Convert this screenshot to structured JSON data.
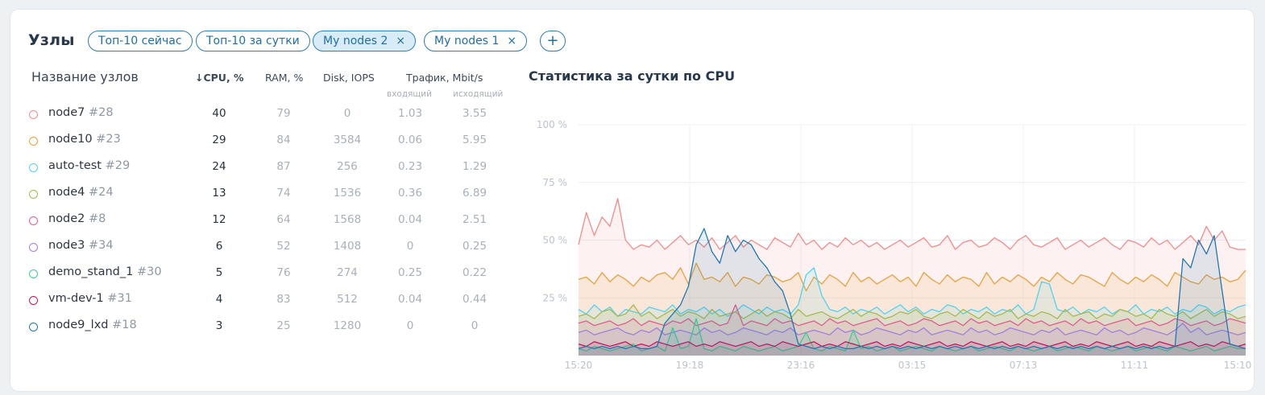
{
  "header": {
    "title": "Узлы",
    "tabs": [
      {
        "label": "Топ-10 сейчас",
        "active": false,
        "closable": false
      },
      {
        "label": "Топ-10 за сутки",
        "active": false,
        "closable": false
      },
      {
        "label": "My nodes 2",
        "active": true,
        "closable": true
      },
      {
        "label": "My nodes 1",
        "active": false,
        "closable": true
      }
    ],
    "add_label": "+",
    "close_glyph": "×"
  },
  "table": {
    "columns": {
      "name": "Название узлов",
      "cpu": "↓CPU, %",
      "ram": "RAM, %",
      "disk": "Disk, IOPS",
      "traffic": "Трафик, Mbit/s",
      "traffic_in": "входящий",
      "traffic_out": "исходящий"
    },
    "rows": [
      {
        "name": "node7",
        "id": "#28",
        "color": "#f28b8b",
        "cpu": "40",
        "ram": "79",
        "disk": "0",
        "tin": "1.03",
        "tout": "3.55"
      },
      {
        "name": "node10",
        "id": "#23",
        "color": "#e6a23c",
        "cpu": "29",
        "ram": "84",
        "disk": "3584",
        "tin": "0.06",
        "tout": "5.95"
      },
      {
        "name": "auto-test",
        "id": "#29",
        "color": "#4fd3f0",
        "cpu": "24",
        "ram": "87",
        "disk": "256",
        "tin": "0.23",
        "tout": "1.29"
      },
      {
        "name": "node4",
        "id": "#24",
        "color": "#a8b850",
        "cpu": "13",
        "ram": "74",
        "disk": "1536",
        "tin": "0.36",
        "tout": "6.89"
      },
      {
        "name": "node2",
        "id": "#8",
        "color": "#e35b8f",
        "cpu": "12",
        "ram": "64",
        "disk": "1568",
        "tin": "0.04",
        "tout": "2.51"
      },
      {
        "name": "node3",
        "id": "#34",
        "color": "#a57de0",
        "cpu": "6",
        "ram": "52",
        "disk": "1408",
        "tin": "0",
        "tout": "0.25"
      },
      {
        "name": "demo_stand_1",
        "id": "#30",
        "color": "#3ccf8e",
        "cpu": "5",
        "ram": "76",
        "disk": "274",
        "tin": "0.25",
        "tout": "0.22"
      },
      {
        "name": "vm-dev-1",
        "id": "#31",
        "color": "#c2185b",
        "cpu": "4",
        "ram": "83",
        "disk": "512",
        "tin": "0.04",
        "tout": "0.44"
      },
      {
        "name": "node9_lxd",
        "id": "#18",
        "color": "#1f78b4",
        "cpu": "3",
        "ram": "25",
        "disk": "1280",
        "tin": "0",
        "tout": "0"
      }
    ]
  },
  "chart": {
    "title": "Статистика за сутки по CPU",
    "y_ticks": [
      "100 %",
      "75 %",
      "50 %",
      "25 %"
    ],
    "x_ticks": [
      "15:20",
      "19:18",
      "23:16",
      "03:15",
      "07:13",
      "11:11",
      "15:10"
    ]
  },
  "chart_data": {
    "type": "area",
    "title": "Статистика за сутки по CPU",
    "x_labels": [
      "15:20",
      "19:18",
      "23:16",
      "03:15",
      "07:13",
      "11:11",
      "15:10"
    ],
    "ylim": [
      0,
      100
    ],
    "y_ticks": [
      25,
      50,
      75,
      100
    ],
    "grid": true,
    "series": [
      {
        "name": "node7",
        "color": "#f28b8b",
        "values": [
          48,
          62,
          52,
          60,
          56,
          68,
          50,
          46,
          48,
          47,
          50,
          46,
          49,
          52,
          48,
          50,
          47,
          51,
          46,
          49,
          52,
          47,
          50,
          48,
          46,
          51,
          49,
          47,
          53,
          48,
          50,
          46,
          49,
          47,
          51,
          48,
          50,
          47,
          49,
          46,
          48,
          50,
          47,
          49,
          51,
          47,
          48,
          52,
          46,
          49,
          50,
          47,
          48,
          51,
          49,
          46,
          50,
          52,
          48,
          47,
          49,
          51,
          46,
          48,
          50,
          47,
          49,
          51,
          48,
          46,
          50,
          49,
          47,
          51,
          48,
          50,
          46,
          49,
          52,
          48,
          56,
          50,
          54,
          47,
          46,
          46
        ]
      },
      {
        "name": "node10",
        "color": "#e6a23c",
        "values": [
          33,
          34,
          31,
          36,
          32,
          35,
          33,
          30,
          34,
          32,
          35,
          36,
          33,
          38,
          31,
          40,
          33,
          34,
          32,
          36,
          30,
          34,
          33,
          31,
          35,
          34,
          32,
          33,
          36,
          28,
          34,
          31,
          35,
          33,
          30,
          36,
          32,
          34,
          31,
          33,
          35,
          32,
          34,
          30,
          36,
          33,
          31,
          35,
          32,
          34,
          33,
          30,
          36,
          31,
          34,
          32,
          35,
          33,
          30,
          34,
          32,
          36,
          33,
          31,
          35,
          34,
          32,
          30,
          36,
          33,
          31,
          34,
          32,
          35,
          33,
          30,
          36,
          34,
          32,
          31,
          35,
          33,
          34,
          32,
          33,
          37
        ]
      },
      {
        "name": "auto-test",
        "color": "#4fd3f0",
        "values": [
          20,
          18,
          22,
          19,
          21,
          17,
          20,
          19,
          18,
          21,
          20,
          19,
          22,
          18,
          20,
          19,
          21,
          18,
          20,
          17,
          19,
          22,
          20,
          18,
          21,
          19,
          20,
          18,
          22,
          35,
          38,
          26,
          20,
          19,
          21,
          18,
          20,
          19,
          21,
          18,
          20,
          22,
          19,
          21,
          18,
          20,
          19,
          22,
          21,
          18,
          20,
          19,
          21,
          18,
          20,
          19,
          22,
          18,
          20,
          32,
          31,
          20,
          19,
          21,
          18,
          20,
          19,
          21,
          18,
          20,
          19,
          22,
          18,
          20,
          19,
          21,
          18,
          20,
          19,
          22,
          21,
          18,
          20,
          19,
          21,
          22
        ]
      },
      {
        "name": "node4",
        "color": "#a8b850",
        "values": [
          17,
          18,
          16,
          19,
          20,
          17,
          18,
          22,
          17,
          19,
          16,
          18,
          20,
          17,
          19,
          18,
          16,
          20,
          17,
          18,
          19,
          16,
          18,
          20,
          17,
          19,
          18,
          16,
          20,
          17,
          18,
          19,
          17,
          16,
          18,
          20,
          17,
          19,
          18,
          16,
          17,
          19,
          18,
          20,
          17,
          16,
          18,
          19,
          17,
          20,
          18,
          16,
          19,
          17,
          18,
          20,
          16,
          18,
          17,
          19,
          18,
          16,
          20,
          17,
          18,
          19,
          16,
          18,
          17,
          20,
          19,
          17,
          18,
          16,
          20,
          18,
          17,
          19,
          16,
          18,
          20,
          17,
          19,
          18,
          16,
          17
        ]
      },
      {
        "name": "node2",
        "color": "#e35b8f",
        "values": [
          14,
          15,
          13,
          14,
          15,
          13,
          14,
          16,
          13,
          15,
          14,
          13,
          15,
          14,
          16,
          13,
          14,
          15,
          13,
          14,
          22,
          13,
          15,
          14,
          13,
          16,
          14,
          15,
          13,
          14,
          15,
          13,
          16,
          14,
          15,
          13,
          14,
          15,
          16,
          13,
          14,
          15,
          13,
          14,
          16,
          15,
          13,
          14,
          15,
          13,
          16,
          14,
          15,
          13,
          14,
          15,
          13,
          16,
          14,
          15,
          13,
          14,
          15,
          13,
          16,
          14,
          15,
          13,
          14,
          15,
          16,
          13,
          14,
          15,
          13,
          14,
          16,
          15,
          13,
          14,
          15,
          13,
          14,
          16,
          15,
          14
        ]
      },
      {
        "name": "node3",
        "color": "#a57de0",
        "values": [
          10,
          11,
          9,
          10,
          11,
          12,
          10,
          9,
          11,
          10,
          12,
          9,
          10,
          11,
          10,
          9,
          12,
          10,
          11,
          9,
          10,
          12,
          11,
          10,
          9,
          11,
          10,
          12,
          9,
          10,
          11,
          10,
          9,
          12,
          10,
          11,
          9,
          10,
          12,
          11,
          10,
          9,
          11,
          10,
          12,
          9,
          10,
          11,
          10,
          9,
          12,
          10,
          11,
          9,
          10,
          12,
          11,
          10,
          9,
          11,
          10,
          12,
          9,
          10,
          11,
          10,
          9,
          12,
          10,
          11,
          9,
          10,
          12,
          11,
          10,
          9,
          11,
          14,
          10,
          12,
          9,
          10,
          11,
          10,
          9,
          10
        ]
      },
      {
        "name": "demo_stand_1",
        "color": "#3ccf8e",
        "values": [
          3,
          2,
          4,
          3,
          2,
          3,
          4,
          5,
          2,
          3,
          4,
          2,
          12,
          3,
          4,
          16,
          3,
          2,
          4,
          3,
          2,
          4,
          3,
          2,
          3,
          4,
          2,
          3,
          4,
          10,
          3,
          2,
          4,
          3,
          2,
          11,
          3,
          4,
          2,
          3,
          4,
          2,
          3,
          4,
          3,
          2,
          4,
          3,
          2,
          3,
          4,
          2,
          3,
          4,
          3,
          2,
          4,
          3,
          2,
          3,
          4,
          2,
          3,
          4,
          3,
          2,
          4,
          3,
          2,
          3,
          4,
          2,
          3,
          4,
          3,
          2,
          4,
          3,
          2,
          3,
          4,
          2,
          3,
          4,
          3,
          3
        ]
      },
      {
        "name": "vm-dev-1",
        "color": "#c2185b",
        "values": [
          5,
          4,
          6,
          5,
          4,
          5,
          6,
          4,
          5,
          4,
          6,
          5,
          4,
          5,
          6,
          4,
          5,
          4,
          6,
          5,
          4,
          5,
          6,
          4,
          5,
          4,
          6,
          5,
          4,
          5,
          6,
          4,
          5,
          4,
          6,
          5,
          4,
          5,
          6,
          4,
          5,
          4,
          6,
          5,
          4,
          5,
          6,
          4,
          5,
          4,
          6,
          5,
          4,
          5,
          6,
          4,
          5,
          4,
          6,
          5,
          4,
          5,
          6,
          4,
          5,
          4,
          6,
          5,
          4,
          5,
          6,
          4,
          5,
          4,
          6,
          5,
          4,
          5,
          6,
          4,
          5,
          4,
          6,
          5,
          4,
          5
        ]
      },
      {
        "name": "node9_lxd",
        "color": "#1f78b4",
        "values": [
          3,
          4,
          3,
          4,
          3,
          4,
          3,
          4,
          3,
          3,
          4,
          14,
          18,
          22,
          30,
          48,
          55,
          45,
          40,
          52,
          45,
          50,
          48,
          42,
          38,
          32,
          28,
          18,
          5,
          4,
          3,
          4,
          3,
          4,
          3,
          3,
          4,
          3,
          4,
          3,
          4,
          3,
          4,
          3,
          4,
          3,
          4,
          3,
          4,
          3,
          4,
          3,
          4,
          3,
          4,
          3,
          4,
          3,
          4,
          3,
          4,
          3,
          4,
          3,
          4,
          3,
          4,
          3,
          4,
          3,
          4,
          3,
          4,
          3,
          4,
          3,
          4,
          42,
          38,
          50,
          44,
          52,
          28,
          5,
          4,
          3
        ]
      }
    ]
  }
}
